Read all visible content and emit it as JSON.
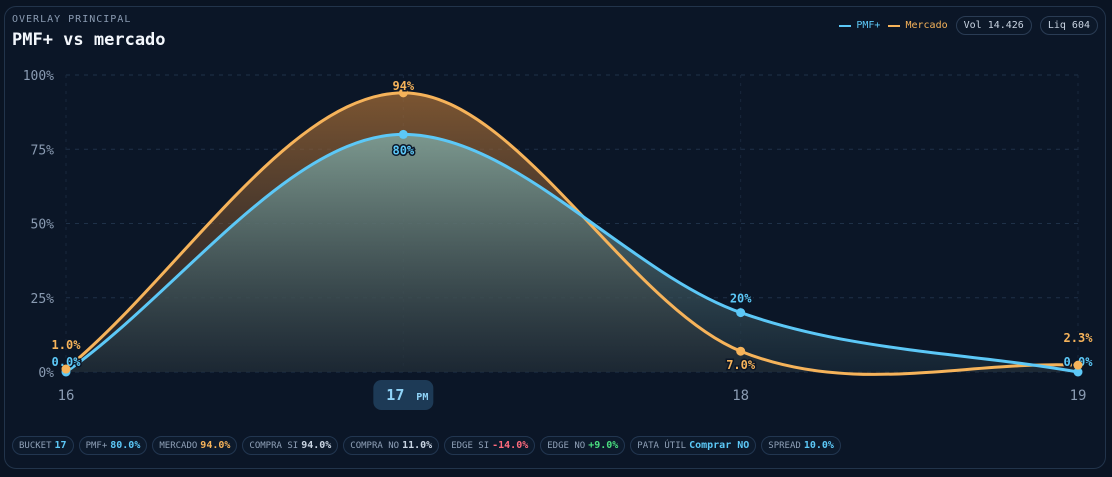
{
  "header": {
    "kicker": "OVERLAY PRINCIPAL",
    "title": "PMF+ vs mercado"
  },
  "legend": {
    "pmf_label": "PMF+",
    "market_label": "Mercado",
    "vol": "Vol 14.426",
    "liq": "Liq 604"
  },
  "colors": {
    "pmf": "#5cc8f7",
    "market": "#f6b35a",
    "negative": "#ff6b7d",
    "positive": "#4ade80"
  },
  "chart_data": {
    "type": "line",
    "x": [
      16,
      17,
      18,
      19
    ],
    "x_tick_labels": [
      "16",
      "17",
      "18",
      "19"
    ],
    "highlight_tick": {
      "value": "17",
      "suffix": "PM"
    },
    "y_ticks": [
      0,
      25,
      50,
      75,
      100
    ],
    "y_tick_labels": [
      "0%",
      "25%",
      "50%",
      "75%",
      "100%"
    ],
    "ylim": [
      0,
      100
    ],
    "grid": true,
    "series": [
      {
        "name": "PMF+",
        "values": [
          0.0,
          80,
          20,
          0.0
        ],
        "labels": [
          "0.0%",
          "80%",
          "20%",
          "0.0%"
        ],
        "color": "#5cc8f7"
      },
      {
        "name": "Mercado",
        "values": [
          1.0,
          94,
          7.0,
          2.3
        ],
        "labels": [
          "1.0%",
          "94%",
          "7.0%",
          "2.3%"
        ],
        "color": "#f6b35a"
      }
    ]
  },
  "footer": [
    {
      "label": "BUCKET",
      "value": "17",
      "tone": "pmf"
    },
    {
      "label": "PMF+",
      "value": "80.0%",
      "tone": "pmf"
    },
    {
      "label": "MERCADO",
      "value": "94.0%",
      "tone": "market"
    },
    {
      "label": "COMPRA SI",
      "value": "94.0%",
      "tone": "neutral"
    },
    {
      "label": "COMPRA NO",
      "value": "11.0%",
      "tone": "neutral"
    },
    {
      "label": "EDGE SI",
      "value": "-14.0%",
      "tone": "negative"
    },
    {
      "label": "EDGE NO",
      "value": "+9.0%",
      "tone": "positive"
    },
    {
      "label": "PATA ÚTIL",
      "value": "Comprar NO",
      "tone": "pmf"
    },
    {
      "label": "SPREAD",
      "value": "10.0%",
      "tone": "pmf"
    }
  ]
}
